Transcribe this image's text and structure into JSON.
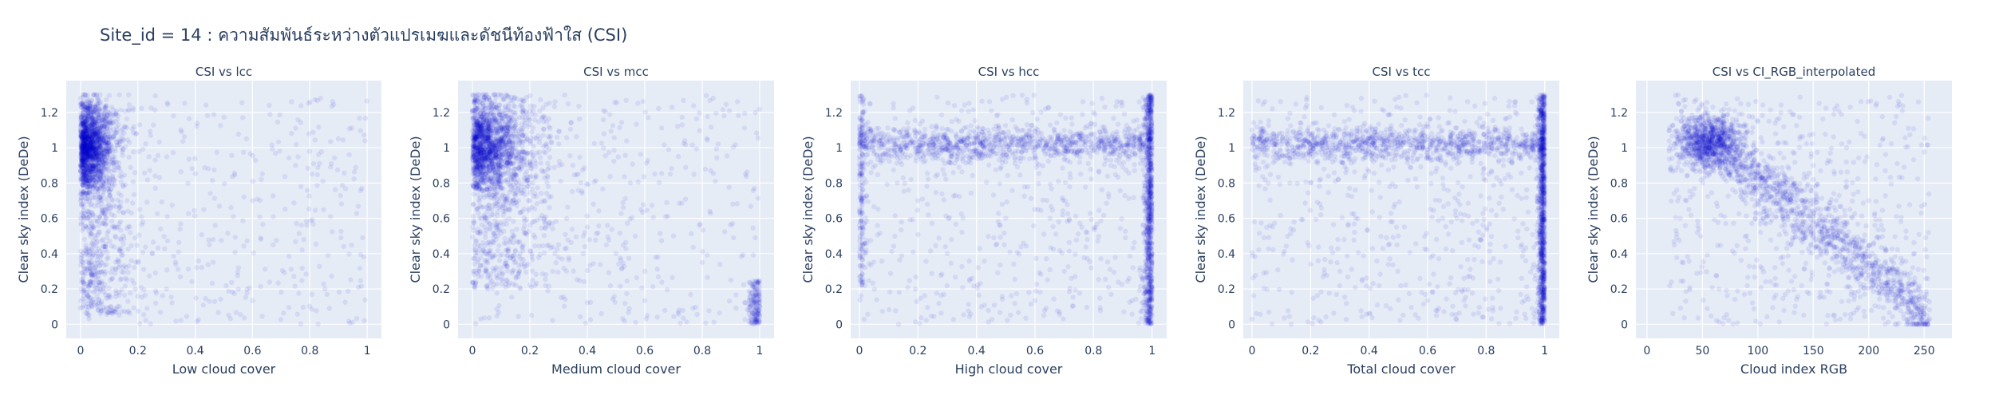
{
  "title": "Site_id = 14 : ความสัมพันธ์ระหว่างตัวแปรเมฆและดัชนีท้องฟ้าใส (CSI)",
  "colors": {
    "plot_bg": "#e5ecf6",
    "grid": "#ffffff",
    "marker": "#0000cd",
    "text": "#2a3f5f"
  },
  "chart_data": [
    {
      "type": "scatter",
      "title": "CSI vs lcc",
      "xlabel": "Low cloud cover",
      "ylabel": "Clear sky index (DeDe)",
      "xlim": [
        -0.05,
        1.05
      ],
      "ylim": [
        -0.08,
        1.38
      ],
      "xticks": [
        0,
        0.2,
        0.4,
        0.6,
        0.8,
        1
      ],
      "xtick_labels": [
        "0",
        "0.2",
        "0.4",
        "0.6",
        "0.8",
        "1"
      ],
      "yticks": [
        0,
        0.2,
        0.4,
        0.6,
        0.8,
        1,
        1.2
      ],
      "ytick_labels": [
        "0",
        "0.2",
        "0.4",
        "0.6",
        "0.8",
        "1",
        "1.2"
      ],
      "grid": true,
      "marker_opacity": 0.08,
      "pattern": "dense cluster near x=0-0.15 with y=0.05-1.3, core near y=1; sparse points out to x=1",
      "points": [
        [
          0.01,
          1.0
        ],
        [
          0.03,
          1.05
        ],
        [
          0.05,
          0.98
        ],
        [
          0.02,
          1.15
        ],
        [
          0.06,
          0.9
        ],
        [
          0.1,
          0.75
        ],
        [
          0.0,
          0.6
        ],
        [
          0.04,
          0.4
        ],
        [
          0.08,
          0.3
        ],
        [
          0.12,
          0.55
        ],
        [
          0.15,
          0.5
        ],
        [
          0.2,
          0.35
        ],
        [
          0.18,
          0.25
        ],
        [
          0.25,
          0.4
        ],
        [
          0.3,
          0.2
        ],
        [
          0.45,
          0.45
        ],
        [
          0.6,
          0.7
        ],
        [
          0.75,
          0.9
        ],
        [
          0.9,
          1.05
        ],
        [
          0.35,
          1.1
        ],
        [
          0.02,
          0.1
        ],
        [
          0.07,
          0.2
        ],
        [
          0.1,
          1.2
        ],
        [
          0.0,
          1.28
        ]
      ]
    },
    {
      "type": "scatter",
      "title": "CSI vs mcc",
      "xlabel": "Medium cloud cover",
      "ylabel": "Clear sky index (DeDe)",
      "xlim": [
        -0.05,
        1.05
      ],
      "ylim": [
        -0.08,
        1.38
      ],
      "xticks": [
        0,
        0.2,
        0.4,
        0.6,
        0.8,
        1
      ],
      "xtick_labels": [
        "0",
        "0.2",
        "0.4",
        "0.6",
        "0.8",
        "1"
      ],
      "yticks": [
        0,
        0.2,
        0.4,
        0.6,
        0.8,
        1,
        1.2
      ],
      "ytick_labels": [
        "0",
        "0.2",
        "0.4",
        "0.6",
        "0.8",
        "1",
        "1.2"
      ],
      "grid": true,
      "marker_opacity": 0.08,
      "pattern": "dense cluster near x=0-0.3 with y=0.2-1.3, core near y=1; sparse spread across x; small cluster at x=1, y<0.2",
      "points": [
        [
          0.02,
          1.02
        ],
        [
          0.05,
          1.08
        ],
        [
          0.1,
          0.95
        ],
        [
          0.0,
          1.2
        ],
        [
          0.15,
          0.85
        ],
        [
          0.2,
          0.7
        ],
        [
          0.08,
          0.5
        ],
        [
          0.25,
          0.6
        ],
        [
          0.3,
          0.45
        ],
        [
          0.4,
          0.55
        ],
        [
          0.5,
          0.4
        ],
        [
          0.6,
          0.3
        ],
        [
          0.7,
          0.5
        ],
        [
          0.8,
          0.35
        ],
        [
          0.9,
          0.25
        ],
        [
          1.0,
          0.1
        ],
        [
          1.0,
          0.05
        ],
        [
          0.98,
          0.15
        ],
        [
          0.35,
          0.9
        ],
        [
          0.55,
          0.8
        ],
        [
          0.05,
          0.3
        ],
        [
          0.12,
          0.25
        ],
        [
          0.02,
          1.28
        ]
      ]
    },
    {
      "type": "scatter",
      "title": "CSI vs hcc",
      "xlabel": "High cloud cover",
      "ylabel": "Clear sky index (DeDe)",
      "xlim": [
        -0.03,
        1.05
      ],
      "ylim": [
        -0.08,
        1.38
      ],
      "xticks": [
        0,
        0.2,
        0.4,
        0.6,
        0.8,
        1
      ],
      "xtick_labels": [
        "0",
        "0.2",
        "0.4",
        "0.6",
        "0.8",
        "1"
      ],
      "yticks": [
        0,
        0.2,
        0.4,
        0.6,
        0.8,
        1,
        1.2
      ],
      "ytick_labels": [
        "0",
        "0.2",
        "0.4",
        "0.6",
        "0.8",
        "1",
        "1.2"
      ],
      "grid": true,
      "marker_opacity": 0.08,
      "pattern": "horizontal band near y=1 across all x; dense vertical strip at x=1 from y=0 to 1.3; denser at x=0",
      "points": [
        [
          0.0,
          1.02
        ],
        [
          0.0,
          1.1
        ],
        [
          0.0,
          0.95
        ],
        [
          0.1,
          1.03
        ],
        [
          0.2,
          1.0
        ],
        [
          0.3,
          1.05
        ],
        [
          0.4,
          0.98
        ],
        [
          0.5,
          1.02
        ],
        [
          0.6,
          1.0
        ],
        [
          0.7,
          1.04
        ],
        [
          0.8,
          0.99
        ],
        [
          0.9,
          1.01
        ],
        [
          1.0,
          1.0
        ],
        [
          1.0,
          0.8
        ],
        [
          1.0,
          0.6
        ],
        [
          1.0,
          0.4
        ],
        [
          1.0,
          0.2
        ],
        [
          1.0,
          0.05
        ],
        [
          0.5,
          0.6
        ],
        [
          0.3,
          0.4
        ],
        [
          0.7,
          0.3
        ],
        [
          0.2,
          0.7
        ],
        [
          0.8,
          1.2
        ]
      ]
    },
    {
      "type": "scatter",
      "title": "CSI vs tcc",
      "xlabel": "Total cloud cover",
      "ylabel": "Clear sky index (DeDe)",
      "xlim": [
        -0.03,
        1.05
      ],
      "ylim": [
        -0.08,
        1.38
      ],
      "xticks": [
        0,
        0.2,
        0.4,
        0.6,
        0.8,
        1
      ],
      "xtick_labels": [
        "0",
        "0.2",
        "0.4",
        "0.6",
        "0.8",
        "1"
      ],
      "yticks": [
        0,
        0.2,
        0.4,
        0.6,
        0.8,
        1,
        1.2
      ],
      "ytick_labels": [
        "0",
        "0.2",
        "0.4",
        "0.6",
        "0.8",
        "1",
        "1.2"
      ],
      "grid": true,
      "marker_opacity": 0.08,
      "pattern": "horizontal band near y=1 across x; very dense vertical strip at x=1 from y=0 to 1.3",
      "points": [
        [
          0.0,
          1.1
        ],
        [
          0.0,
          1.05
        ],
        [
          0.1,
          1.02
        ],
        [
          0.2,
          1.0
        ],
        [
          0.3,
          1.03
        ],
        [
          0.4,
          1.0
        ],
        [
          0.5,
          1.01
        ],
        [
          0.6,
          0.99
        ],
        [
          0.7,
          1.02
        ],
        [
          0.8,
          1.0
        ],
        [
          0.9,
          0.98
        ],
        [
          1.0,
          1.0
        ],
        [
          1.0,
          0.7
        ],
        [
          1.0,
          0.5
        ],
        [
          1.0,
          0.3
        ],
        [
          1.0,
          0.1
        ],
        [
          1.0,
          0.02
        ],
        [
          0.5,
          0.5
        ],
        [
          0.3,
          0.3
        ],
        [
          0.7,
          0.6
        ],
        [
          0.2,
          0.8
        ],
        [
          0.9,
          1.2
        ]
      ]
    },
    {
      "type": "scatter",
      "title": "CSI vs CI_RGB_interpolated",
      "xlabel": "Cloud index RGB",
      "ylabel": "Clear sky index (DeDe)",
      "xlim": [
        -10,
        275
      ],
      "ylim": [
        -0.08,
        1.38
      ],
      "xticks": [
        0,
        50,
        100,
        150,
        200,
        250
      ],
      "xtick_labels": [
        "0",
        "50",
        "100",
        "150",
        "200",
        "250"
      ],
      "yticks": [
        0,
        0.2,
        0.4,
        0.6,
        0.8,
        1,
        1.2
      ],
      "ytick_labels": [
        "0",
        "0.2",
        "0.4",
        "0.6",
        "0.8",
        "1",
        "1.2"
      ],
      "grid": true,
      "marker_opacity": 0.08,
      "pattern": "dense cluster near x=30-80, y=0.9-1.2; diagonal decreasing band from (70,1) to (255,0.05)",
      "points": [
        [
          40,
          1.0
        ],
        [
          50,
          1.05
        ],
        [
          60,
          1.1
        ],
        [
          55,
          0.95
        ],
        [
          70,
          1.0
        ],
        [
          80,
          0.9
        ],
        [
          100,
          0.8
        ],
        [
          120,
          0.65
        ],
        [
          140,
          0.55
        ],
        [
          160,
          0.45
        ],
        [
          180,
          0.35
        ],
        [
          200,
          0.28
        ],
        [
          220,
          0.2
        ],
        [
          240,
          0.12
        ],
        [
          250,
          0.06
        ],
        [
          255,
          0.03
        ],
        [
          90,
          0.5
        ],
        [
          150,
          0.9
        ],
        [
          200,
          0.7
        ],
        [
          30,
          0.6
        ],
        [
          110,
          1.15
        ],
        [
          180,
          1.0
        ]
      ]
    }
  ]
}
